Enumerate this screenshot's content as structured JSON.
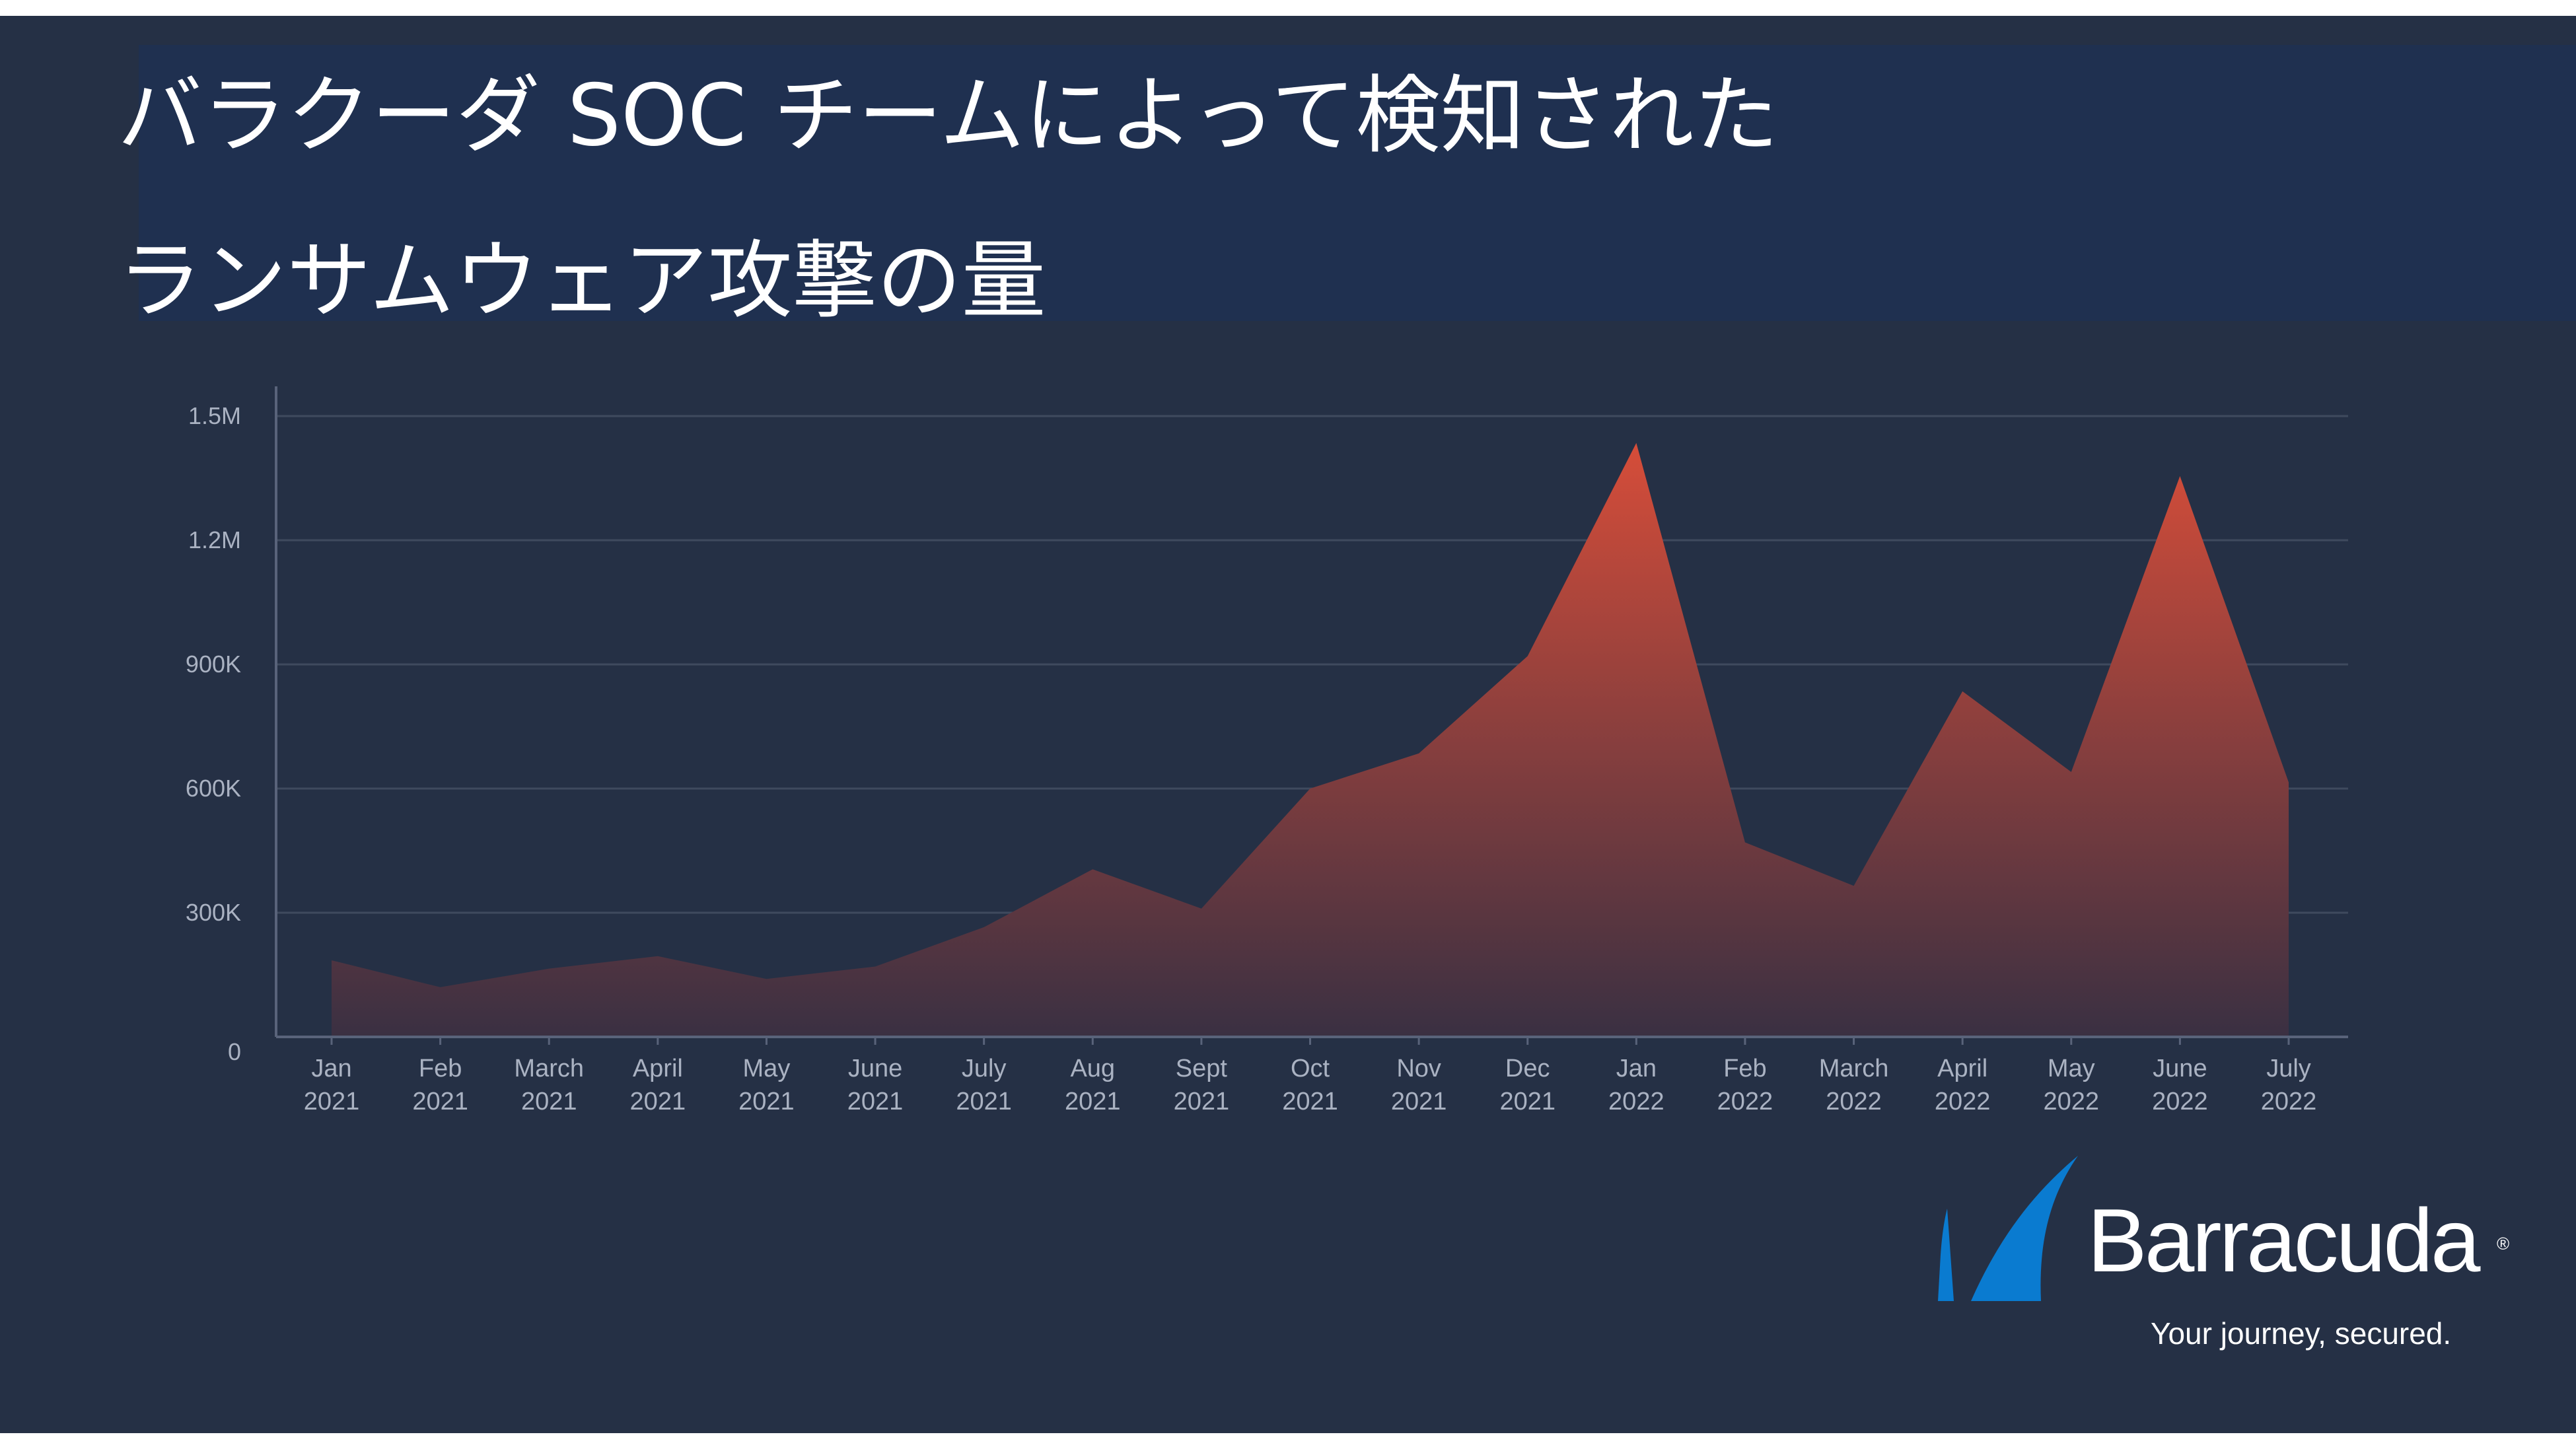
{
  "title": {
    "line1": "バラクーダ SOC チームによって検知された",
    "line2": "ランサムウェア攻撃の量"
  },
  "chart_data": {
    "type": "area",
    "title": "バラクーダ SOC チームによって検知された ランサムウェア攻撃の量",
    "xlabel": "",
    "ylabel": "",
    "categories": [
      [
        "Jan",
        "2021"
      ],
      [
        "Feb",
        "2021"
      ],
      [
        "March",
        "2021"
      ],
      [
        "April",
        "2021"
      ],
      [
        "May",
        "2021"
      ],
      [
        "June",
        "2021"
      ],
      [
        "July",
        "2021"
      ],
      [
        "Aug",
        "2021"
      ],
      [
        "Sept",
        "2021"
      ],
      [
        "Oct",
        "2021"
      ],
      [
        "Nov",
        "2021"
      ],
      [
        "Dec",
        "2021"
      ],
      [
        "Jan",
        "2022"
      ],
      [
        "Feb",
        "2022"
      ],
      [
        "March",
        "2022"
      ],
      [
        "April",
        "2022"
      ],
      [
        "May",
        "2022"
      ],
      [
        "June",
        "2022"
      ],
      [
        "July",
        "2022"
      ]
    ],
    "values": [
      185000,
      120000,
      165000,
      195000,
      140000,
      170000,
      265000,
      405000,
      310000,
      600000,
      685000,
      920000,
      1435000,
      470000,
      365000,
      835000,
      640000,
      1355000,
      615000
    ],
    "yticks": [
      {
        "value": 0,
        "label": "0"
      },
      {
        "value": 300000,
        "label": "300K"
      },
      {
        "value": 600000,
        "label": "600K"
      },
      {
        "value": 900000,
        "label": "900K"
      },
      {
        "value": 1200000,
        "label": "1.2M"
      },
      {
        "value": 1500000,
        "label": "1.5M"
      }
    ],
    "ylim": [
      0,
      1500000
    ],
    "grid": true,
    "legend": "none",
    "colors": {
      "fill_top": "#d64d39",
      "fill_bottom": "#3a3042",
      "grid": "#3f4a5e",
      "tick_text": "#aab2c2",
      "axis": "#59637a"
    }
  },
  "brand": {
    "name": "Barracuda",
    "registered": "®",
    "tagline": "Your journey, secured.",
    "icon": "barracuda-fin-icon",
    "color": "#0a7bd0"
  }
}
